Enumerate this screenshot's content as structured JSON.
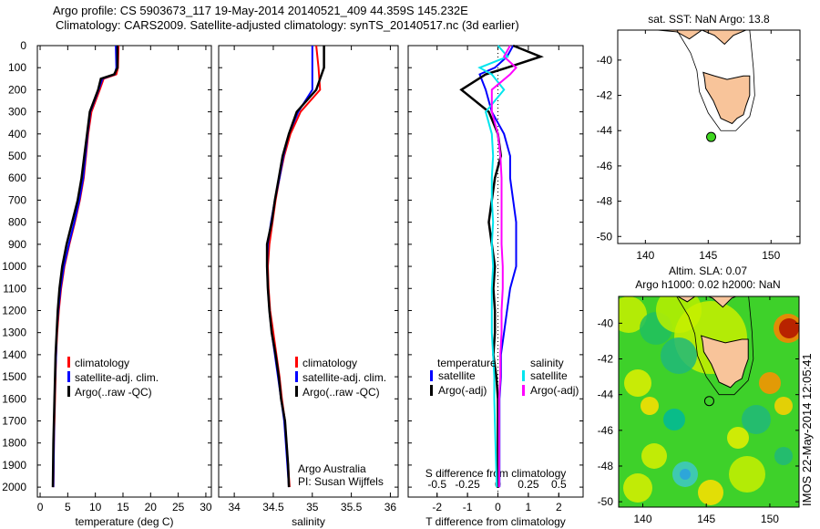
{
  "title": {
    "line1": "Argo profile: CS 5903673_117 19-May-2014 20140521_409 44.359S 145.232E",
    "line2": "Climatology: CARS2009. Satellite-adjusted climatology: synTS_20140517.nc (3d earlier)"
  },
  "stamp": "IMOS 22-May-2014 12:05:41",
  "colors": {
    "climatology": "#ff0000",
    "satellite": "#0000ff",
    "argo": "#000000",
    "sal_satellite": "#00e5ee",
    "sal_argo": "#ff00ff",
    "land": "#f8c49a",
    "sst_bg": "#ffffff"
  },
  "chart_data": [
    {
      "type": "line",
      "name": "temperature",
      "xlabel": "temperature (deg C)",
      "xlim": [
        -0.5,
        31
      ],
      "ylim": [
        2045,
        0
      ],
      "xticks": [
        "0",
        "5",
        "10",
        "15",
        "20",
        "25",
        "30"
      ],
      "xtick_values": [
        0,
        5,
        10,
        15,
        20,
        25,
        30
      ],
      "yticks": [
        "0",
        "100",
        "200",
        "300",
        "400",
        "500",
        "600",
        "700",
        "800",
        "900",
        "1000",
        "1100",
        "1200",
        "1300",
        "1400",
        "1500",
        "1600",
        "1700",
        "1800",
        "1900",
        "2000"
      ],
      "depth": [
        0,
        100,
        130,
        150,
        200,
        300,
        400,
        500,
        600,
        700,
        800,
        900,
        1000,
        1100,
        1200,
        1300,
        1400,
        1600,
        1800,
        2000
      ],
      "series": [
        {
          "name": "climatology",
          "color": "#ff0000",
          "values": [
            14.2,
            14.1,
            13.8,
            11.5,
            10.8,
            9.3,
            8.7,
            8.3,
            7.9,
            7.2,
            6.3,
            5.3,
            4.4,
            3.8,
            3.4,
            3.1,
            2.9,
            2.7,
            2.5,
            2.4
          ]
        },
        {
          "name": "satellite-adj. clim.",
          "color": "#0000ff",
          "values": [
            13.7,
            13.8,
            13.5,
            11.3,
            10.6,
            9.1,
            8.6,
            8.2,
            7.8,
            7.1,
            6.2,
            5.2,
            4.3,
            3.7,
            3.3,
            3.0,
            2.9,
            2.6,
            2.5,
            2.4
          ]
        },
        {
          "name": "Argo(..raw -QC)",
          "color": "#000000",
          "values": [
            14.0,
            14.0,
            13.4,
            11.0,
            10.5,
            9.0,
            8.5,
            8.0,
            7.5,
            6.8,
            5.8,
            4.8,
            4.0,
            3.5,
            3.2,
            3.0,
            2.8,
            2.6,
            2.4,
            2.3
          ]
        }
      ],
      "legend": [
        "climatology",
        "satellite-adj. clim.",
        "Argo(..raw -QC)"
      ]
    },
    {
      "type": "line",
      "name": "salinity",
      "xlabel": "salinity",
      "xlim": [
        33.8,
        36.1
      ],
      "ylim": [
        2045,
        0
      ],
      "xticks": [
        "34",
        "34.5",
        "35",
        "35.5",
        "36"
      ],
      "xtick_values": [
        34,
        34.5,
        35,
        35.5,
        36
      ],
      "depth": [
        0,
        100,
        200,
        300,
        400,
        500,
        600,
        700,
        800,
        900,
        1000,
        1100,
        1200,
        1300,
        1400,
        1500,
        1600,
        1700,
        1800,
        1900,
        2000
      ],
      "series": [
        {
          "name": "climatology",
          "color": "#ff0000",
          "values": [
            35.05,
            35.08,
            35.1,
            34.85,
            34.72,
            34.64,
            34.58,
            34.53,
            34.49,
            34.45,
            34.43,
            34.44,
            34.46,
            34.5,
            34.54,
            34.58,
            34.61,
            34.65,
            34.67,
            34.69,
            34.71
          ]
        },
        {
          "name": "satellite-adj. clim.",
          "color": "#0000ff",
          "values": [
            35.0,
            35.0,
            35.0,
            34.82,
            34.7,
            34.63,
            34.58,
            34.52,
            34.47,
            34.43,
            34.42,
            34.43,
            34.45,
            34.48,
            34.52,
            34.56,
            34.6,
            34.64,
            34.66,
            34.68,
            34.7
          ]
        },
        {
          "name": "Argo(..raw -QC)",
          "color": "#000000",
          "values": [
            35.15,
            35.15,
            35.05,
            34.8,
            34.7,
            34.62,
            34.57,
            34.52,
            34.48,
            34.42,
            34.42,
            34.43,
            34.45,
            34.48,
            34.53,
            34.57,
            34.6,
            34.65,
            34.67,
            34.69,
            34.7
          ]
        }
      ],
      "legend": [
        "climatology",
        "satellite-adj. clim.",
        "Argo(..raw -QC)"
      ],
      "annotation": [
        "Argo Australia",
        "PI: Susan Wijffels"
      ]
    },
    {
      "type": "line",
      "name": "difference",
      "xlabel": "T difference from climatology",
      "x2label": "S difference from climatology",
      "xlim": [
        -2.95,
        2.8
      ],
      "ylim": [
        2045,
        0
      ],
      "xticks": [
        "-2",
        "-1",
        "0",
        "1",
        "2"
      ],
      "xtick_values": [
        -2,
        -1,
        0,
        1,
        2
      ],
      "x2ticks": [
        "-0.5",
        "-0.25",
        "0",
        "0.25",
        "0.5"
      ],
      "x2tick_values": [
        -0.5,
        -0.25,
        0,
        0.25,
        0.5
      ],
      "depth": [
        0,
        50,
        100,
        130,
        200,
        300,
        400,
        500,
        600,
        700,
        800,
        900,
        1000,
        1100,
        1200,
        1300,
        1400,
        1500,
        1600,
        1800,
        2000
      ],
      "series": [
        {
          "name": "T satellite",
          "color": "#0000ff",
          "values": [
            0.5,
            0.3,
            -0.1,
            -0.6,
            -0.4,
            -0.2,
            0.2,
            0.4,
            0.4,
            0.5,
            0.6,
            0.6,
            0.6,
            0.4,
            0.3,
            0.2,
            0.1,
            0.1,
            0.05,
            0.05,
            0.05
          ]
        },
        {
          "name": "T Argo(-adj)",
          "color": "#000000",
          "values": [
            0.5,
            1.4,
            0.3,
            -0.4,
            -1.2,
            -0.3,
            0.0,
            0.1,
            -0.1,
            -0.2,
            -0.3,
            -0.2,
            -0.1,
            -0.15,
            -0.1,
            -0.1,
            -0.15,
            -0.05,
            0.0,
            0.0,
            0.0
          ]
        },
        {
          "name": "S satellite",
          "color": "#00e5ee",
          "values": [
            0.0,
            0.08,
            -0.15,
            -0.05,
            0.05,
            -0.1,
            -0.05,
            -0.04,
            -0.05,
            -0.05,
            -0.04,
            -0.05,
            -0.04,
            -0.05,
            -0.05,
            -0.05,
            -0.04,
            -0.03,
            -0.03,
            -0.02,
            -0.01
          ]
        },
        {
          "name": "S Argo(-adj)",
          "color": "#ff00ff",
          "values": [
            0.1,
            0.05,
            0.15,
            0.1,
            -0.05,
            -0.05,
            0.0,
            0.02,
            0.03,
            0.03,
            0.03,
            0.03,
            0.04,
            0.04,
            0.03,
            0.03,
            0.02,
            0.02,
            0.01,
            0.01,
            0.01
          ]
        }
      ],
      "legend_temperature": {
        "title": "temperature",
        "items": [
          "satellite",
          "Argo(-adj)"
        ]
      },
      "legend_salinity": {
        "title": "salinity",
        "items": [
          "satellite",
          "Argo(-adj)"
        ]
      }
    }
  ],
  "maps": [
    {
      "title": "sat. SST: NaN Argo: 13.8",
      "xticks": [
        "140",
        "145",
        "150"
      ],
      "yticks": [
        "-40",
        "-42",
        "-44",
        "-46",
        "-48",
        "-50"
      ],
      "argo_lon": 145.232,
      "argo_lat": -44.359
    },
    {
      "title1": "Altim. SLA: 0.07",
      "title2": "Argo h1000: 0.02 h2000: NaN",
      "xticks": [
        "140",
        "145",
        "150"
      ],
      "yticks": [
        "-40",
        "-42",
        "-44",
        "-46",
        "-48",
        "-50"
      ],
      "argo_lon": 145.232,
      "argo_lat": -44.359
    }
  ]
}
